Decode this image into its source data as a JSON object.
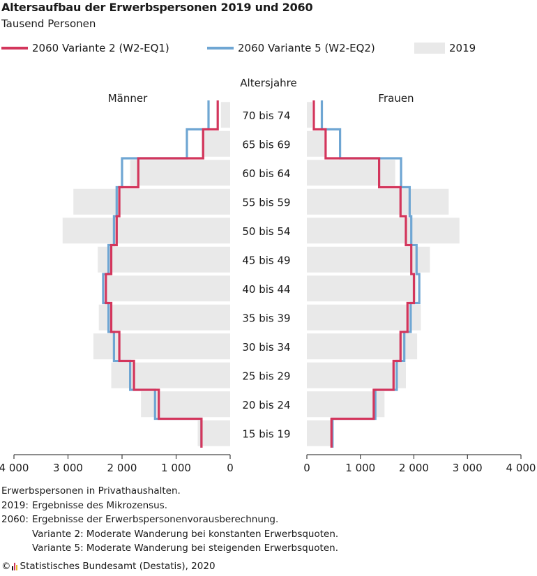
{
  "header": {
    "title": "Altersaufbau der Erwerbspersonen 2019 und 2060",
    "subtitle": "Tausend Personen"
  },
  "legend": {
    "v2_label": "2060 Variante 2 (W2-EQ1)",
    "v5_label": "2060 Variante 5 (W2-EQ2)",
    "y2019_label": "2019"
  },
  "colors": {
    "v2": "#d3365c",
    "v5": "#6fa6d3",
    "bars2019": "#e9e9e9",
    "axis": "#1a1a1a"
  },
  "chart_data": {
    "type": "bar",
    "orientation": "population-pyramid",
    "center_label": "Altersjahre",
    "left_panel_label": "Männer",
    "right_panel_label": "Frauen",
    "categories": [
      "70 bis 74",
      "65 bis 69",
      "60 bis 64",
      "55 bis 59",
      "50 bis 54",
      "45 bis 49",
      "40 bis 44",
      "35 bis 39",
      "30 bis 34",
      "25 bis 29",
      "20 bis 24",
      "15 bis 19"
    ],
    "x_ticks": [
      4000,
      3000,
      2000,
      1000,
      0
    ],
    "x_tick_labels_left": [
      "4 000",
      "3 000",
      "2 000",
      "1 000",
      "0"
    ],
    "x_tick_labels_right": [
      "0",
      "1 000",
      "2 000",
      "3 000",
      "4 000"
    ],
    "xlim": [
      0,
      4000
    ],
    "series": [
      {
        "name": "2019",
        "style": "bar",
        "men": [
          170,
          530,
          1850,
          2900,
          3100,
          2450,
          2300,
          2430,
          2530,
          2200,
          1650,
          600
        ],
        "women": [
          100,
          330,
          1650,
          2650,
          2850,
          2300,
          2050,
          2130,
          2060,
          1850,
          1450,
          450
        ]
      },
      {
        "name": "2060 Variante 2 (W2-EQ1)",
        "style": "step-line",
        "men": [
          230,
          500,
          1700,
          2050,
          2100,
          2200,
          2300,
          2200,
          2050,
          1780,
          1320,
          530
        ],
        "women": [
          130,
          350,
          1350,
          1750,
          1850,
          1950,
          2000,
          1880,
          1750,
          1620,
          1250,
          460
        ]
      },
      {
        "name": "2060 Variante 5 (W2-EQ2)",
        "style": "step-line",
        "men": [
          400,
          800,
          2000,
          2100,
          2150,
          2250,
          2350,
          2250,
          2150,
          1850,
          1390,
          530
        ],
        "women": [
          280,
          620,
          1760,
          1920,
          1950,
          2050,
          2100,
          1940,
          1820,
          1680,
          1280,
          480
        ]
      }
    ]
  },
  "notes": {
    "line1": "Erwerbspersonen in Privathaushalten.",
    "line2_label": "2019:",
    "line2_text": "Ergebnisse des Mikrozensus.",
    "line3_label": "2060:",
    "line3_text": "Ergebnisse der Erwerbspersonenvorausberechnung.",
    "line4_text": "Variante 2: Moderate Wanderung bei konstanten Erwerbsquoten.",
    "line5_text": "Variante 5: Moderate Wanderung bei steigenden Erwerbsquoten."
  },
  "footer": {
    "copyright": "©",
    "source": "Statistisches Bundesamt (Destatis), 2020",
    "logo_colors": [
      "#1a1a1a",
      "#d3365c",
      "#e8b92c"
    ]
  }
}
